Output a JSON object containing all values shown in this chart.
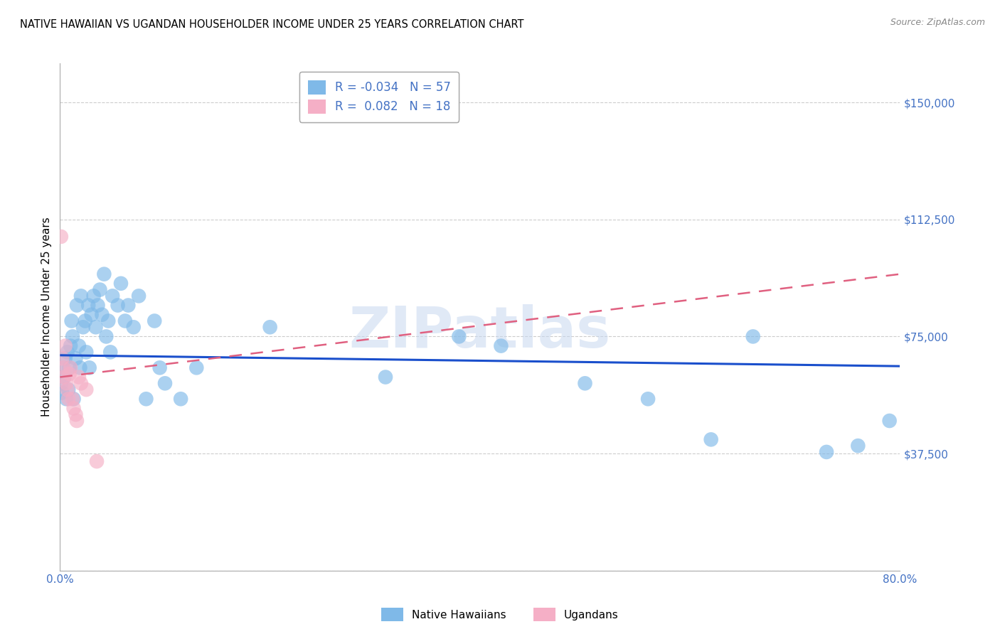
{
  "title": "NATIVE HAWAIIAN VS UGANDAN HOUSEHOLDER INCOME UNDER 25 YEARS CORRELATION CHART",
  "source": "Source: ZipAtlas.com",
  "ylabel": "Householder Income Under 25 years",
  "xlim": [
    0.0,
    0.8
  ],
  "ylim": [
    0,
    162500
  ],
  "xticks": [
    0.0,
    0.1,
    0.2,
    0.3,
    0.4,
    0.5,
    0.6,
    0.7,
    0.8
  ],
  "xtick_labels": [
    "0.0%",
    "",
    "",
    "",
    "",
    "",
    "",
    "",
    "80.0%"
  ],
  "ytick_values": [
    0,
    37500,
    75000,
    112500,
    150000
  ],
  "ytick_labels": [
    "",
    "$37,500",
    "$75,000",
    "$112,500",
    "$150,000"
  ],
  "legend_label1": "Native Hawaiians",
  "legend_label2": "Ugandans",
  "R1": "-0.034",
  "N1": "57",
  "R2": "0.082",
  "N2": "18",
  "blue_color": "#7fb9e8",
  "pink_color": "#f5afc6",
  "trend_blue": "#1a4fcc",
  "trend_pink": "#e06080",
  "label_color": "#4472c4",
  "watermark": "ZIPatlas",
  "native_hawaiian_x": [
    0.001,
    0.002,
    0.003,
    0.004,
    0.005,
    0.006,
    0.007,
    0.008,
    0.009,
    0.01,
    0.011,
    0.012,
    0.013,
    0.015,
    0.016,
    0.018,
    0.019,
    0.02,
    0.022,
    0.024,
    0.025,
    0.027,
    0.028,
    0.03,
    0.032,
    0.034,
    0.036,
    0.038,
    0.04,
    0.042,
    0.044,
    0.046,
    0.048,
    0.05,
    0.055,
    0.058,
    0.062,
    0.065,
    0.07,
    0.075,
    0.082,
    0.09,
    0.095,
    0.1,
    0.115,
    0.13,
    0.2,
    0.31,
    0.38,
    0.42,
    0.5,
    0.56,
    0.62,
    0.66,
    0.73,
    0.76,
    0.79
  ],
  "native_hawaiian_y": [
    60000,
    57000,
    65000,
    62000,
    68000,
    55000,
    70000,
    58000,
    65000,
    72000,
    80000,
    75000,
    55000,
    68000,
    85000,
    72000,
    65000,
    88000,
    78000,
    80000,
    70000,
    85000,
    65000,
    82000,
    88000,
    78000,
    85000,
    90000,
    82000,
    95000,
    75000,
    80000,
    70000,
    88000,
    85000,
    92000,
    80000,
    85000,
    78000,
    88000,
    55000,
    80000,
    65000,
    60000,
    55000,
    65000,
    78000,
    62000,
    75000,
    72000,
    60000,
    55000,
    42000,
    75000,
    38000,
    40000,
    48000
  ],
  "ugandan_x": [
    0.001,
    0.002,
    0.003,
    0.004,
    0.005,
    0.006,
    0.007,
    0.008,
    0.009,
    0.01,
    0.012,
    0.013,
    0.015,
    0.016,
    0.018,
    0.02,
    0.025,
    0.035
  ],
  "ugandan_y": [
    107000,
    68000,
    65000,
    62000,
    72000,
    60000,
    58000,
    55000,
    63000,
    65000,
    55000,
    52000,
    50000,
    48000,
    62000,
    60000,
    58000,
    35000
  ],
  "blue_trend_x": [
    0.0,
    0.8
  ],
  "blue_trend_y": [
    69000,
    65500
  ],
  "pink_trend_x": [
    0.0,
    0.8
  ],
  "pink_trend_y": [
    62000,
    95000
  ]
}
